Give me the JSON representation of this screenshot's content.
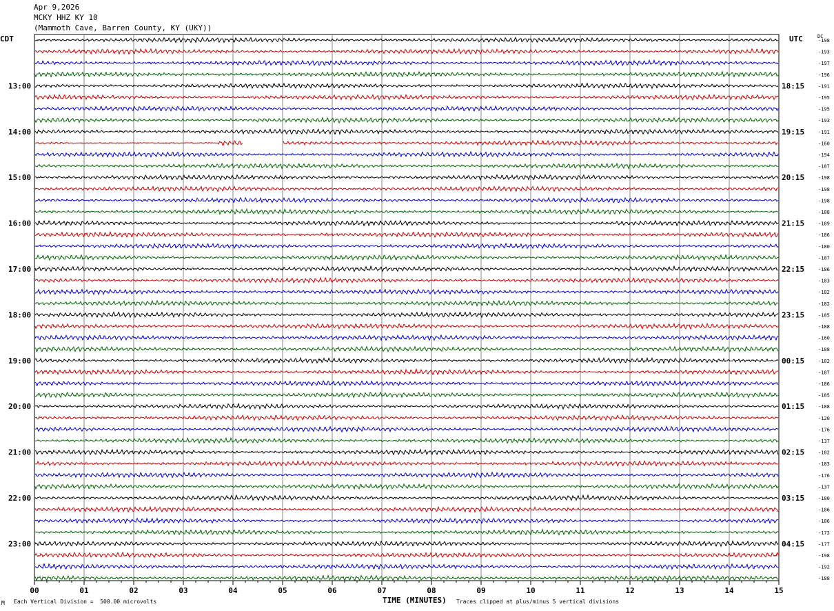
{
  "header": {
    "date": "Apr 9,2026",
    "station": "MCKY HHZ KY 10",
    "location": "(Mammoth Cave, Barren County, KY (UKY))"
  },
  "left_zone_label": "CDT",
  "right_zone_label": "UTC",
  "dc_label": "DC",
  "footer": {
    "scale": "Each Vertical Division =  500.00 microvolts",
    "clip": "Traces clipped at plus/minus 5 vertical divisions",
    "logo": "M"
  },
  "colors": {
    "trace_cycle": [
      "#000000",
      "#cc0000",
      "#0000cc",
      "#006600"
    ],
    "grid": "#888888"
  },
  "chart_data": {
    "type": "line",
    "title": "MCKY HHZ KY 10",
    "xlabel": "TIME (MINUTES)",
    "ylabel": "",
    "x_ticks": [
      "00",
      "01",
      "02",
      "03",
      "04",
      "05",
      "06",
      "07",
      "08",
      "09",
      "10",
      "11",
      "12",
      "13",
      "14",
      "15"
    ],
    "xlim": [
      0,
      15
    ],
    "rows_per_hour": 4,
    "hour_rows": 48,
    "left_hour_labels": [
      "13:00",
      "14:00",
      "15:00",
      "16:00",
      "17:00",
      "18:00",
      "19:00",
      "20:00",
      "21:00",
      "22:00",
      "23:00"
    ],
    "right_hour_labels": [
      "18:15",
      "19:15",
      "20:15",
      "21:15",
      "22:15",
      "23:15",
      "00:15",
      "01:15",
      "02:15",
      "03:15",
      "04:15"
    ],
    "dc_offsets": [
      "-198",
      "-193",
      "-197",
      "-196",
      "-191",
      "-195",
      "-195",
      "-193",
      "-191",
      "-160",
      "-194",
      "-187",
      "-198",
      "-198",
      "-198",
      "-188",
      "-189",
      "-186",
      "-180",
      "-187",
      "-186",
      "-183",
      "-182",
      "-182",
      "-185",
      "-188",
      "-160",
      "-188",
      "-182",
      "-187",
      "-186",
      "-185",
      "-188",
      "-120",
      "-176",
      "-137",
      "-182",
      "-183",
      "-176",
      "-137",
      "-180",
      "-186",
      "-186",
      "-172",
      "-177",
      "-198",
      "-192",
      "-188"
    ],
    "gap": {
      "row": 9,
      "start_minute": 4.2,
      "end_minute": 5.0,
      "flat_start_minute": 0.6,
      "flat_end_minute": 3.7
    },
    "clip_divisions": 5,
    "microvolts_per_division": 500
  }
}
